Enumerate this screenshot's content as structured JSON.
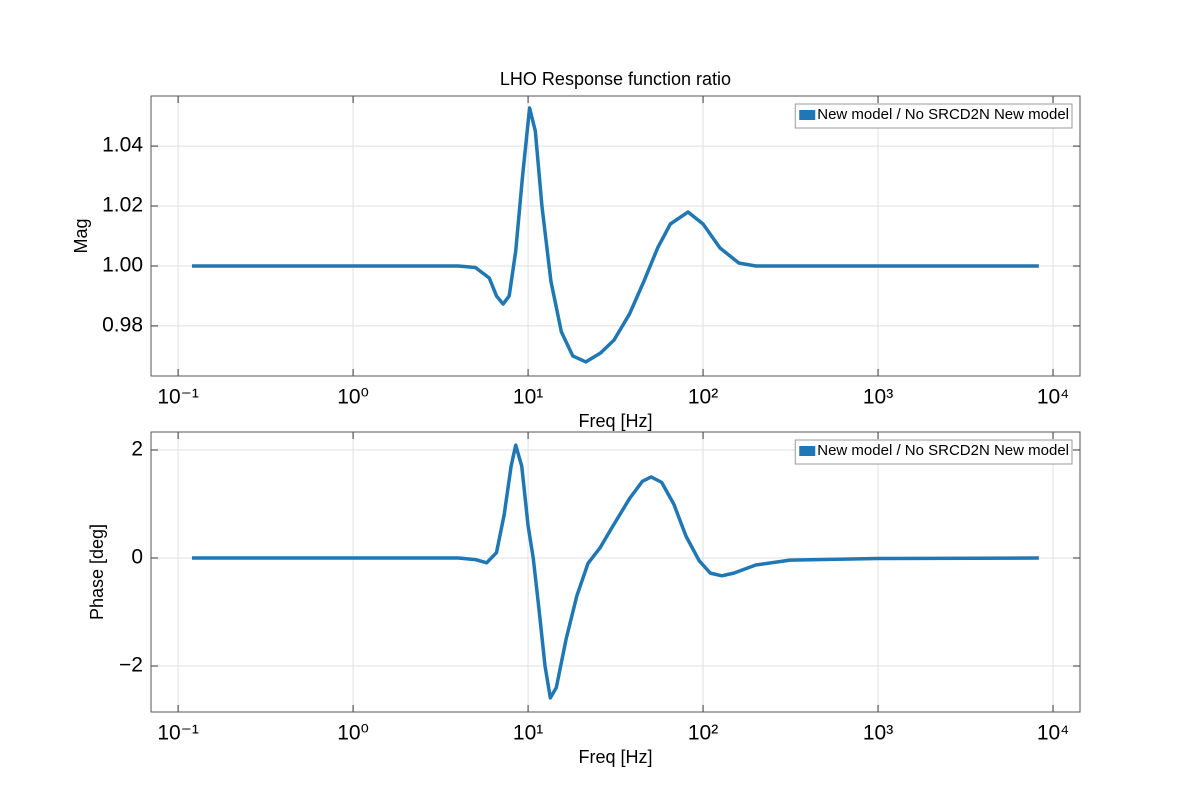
{
  "chart_data": [
    {
      "type": "line",
      "title": "LHO Response function ratio",
      "xlabel": "Freq [Hz]",
      "ylabel": "Mag",
      "xscale": "log",
      "grid": true,
      "legend": "upper right",
      "xlim": [
        0.07,
        14260
      ],
      "ylim": [
        0.9633,
        1.0567
      ],
      "xticks": [
        {
          "value": 0.1,
          "label": "10⁻¹"
        },
        {
          "value": 1,
          "label": "10⁰"
        },
        {
          "value": 10,
          "label": "10¹"
        },
        {
          "value": 100,
          "label": "10²"
        },
        {
          "value": 1000,
          "label": "10³"
        },
        {
          "value": 10000,
          "label": "10⁴"
        }
      ],
      "yticks": [
        0.98,
        {
          "value": 1,
          "label": "1.00"
        },
        1.02,
        1.04
      ],
      "x": [
        0.12,
        1,
        4,
        5,
        6,
        6.6,
        7.2,
        7.8,
        8.5,
        9.3,
        10.2,
        11,
        12,
        13.5,
        15.5,
        18,
        21.4,
        26,
        31,
        38,
        46,
        55,
        65,
        82,
        100,
        125,
        160,
        200,
        400,
        1000,
        8300
      ],
      "series": [
        {
          "name": "New model / No SRCD2N New model",
          "color": "#1f77b4",
          "values": [
            1.0,
            1.0,
            1.0,
            0.9995,
            0.996,
            0.99,
            0.9873,
            0.99,
            1.005,
            1.03,
            1.0527,
            1.045,
            1.02,
            0.995,
            0.978,
            0.97,
            0.968,
            0.971,
            0.9753,
            0.984,
            0.995,
            1.006,
            1.014,
            1.018,
            1.014,
            1.006,
            1.001,
            1.0,
            1.0,
            1.0,
            1.0
          ]
        }
      ]
    },
    {
      "type": "line",
      "xlabel": "Freq [Hz]",
      "ylabel": "Phase [deg]",
      "xscale": "log",
      "grid": true,
      "legend": "upper right",
      "xlim": [
        0.07,
        14260
      ],
      "ylim": [
        -2.852,
        2.333
      ],
      "xticks": [
        {
          "value": 0.1,
          "label": "10⁻¹"
        },
        {
          "value": 1,
          "label": "10⁰"
        },
        {
          "value": 10,
          "label": "10¹"
        },
        {
          "value": 100,
          "label": "10²"
        },
        {
          "value": 1000,
          "label": "10³"
        },
        {
          "value": 10000,
          "label": "10⁴"
        }
      ],
      "yticks": [
        {
          "value": -2,
          "label": "−2"
        },
        0,
        2
      ],
      "x": [
        0.12,
        1,
        4,
        5,
        5.8,
        6.6,
        7.3,
        8.0,
        8.5,
        9.2,
        10,
        10.7,
        11.5,
        12.5,
        13.4,
        14.5,
        16.5,
        19,
        22,
        25.8,
        30,
        38,
        45,
        50.5,
        58,
        68,
        80,
        95,
        110,
        128,
        150,
        200,
        314,
        1000,
        8300
      ],
      "series": [
        {
          "name": "New model / No SRCD2N New model",
          "color": "#1f77b4",
          "values": [
            0,
            0,
            0,
            -0.03,
            -0.09,
            0.1,
            0.8,
            1.7,
            2.09,
            1.7,
            0.6,
            0,
            -0.9,
            -2.0,
            -2.59,
            -2.4,
            -1.5,
            -0.7,
            -0.1,
            0.19,
            0.55,
            1.1,
            1.42,
            1.5,
            1.4,
            1.0,
            0.4,
            -0.05,
            -0.28,
            -0.33,
            -0.28,
            -0.13,
            -0.04,
            -0.01,
            0
          ]
        }
      ]
    }
  ]
}
